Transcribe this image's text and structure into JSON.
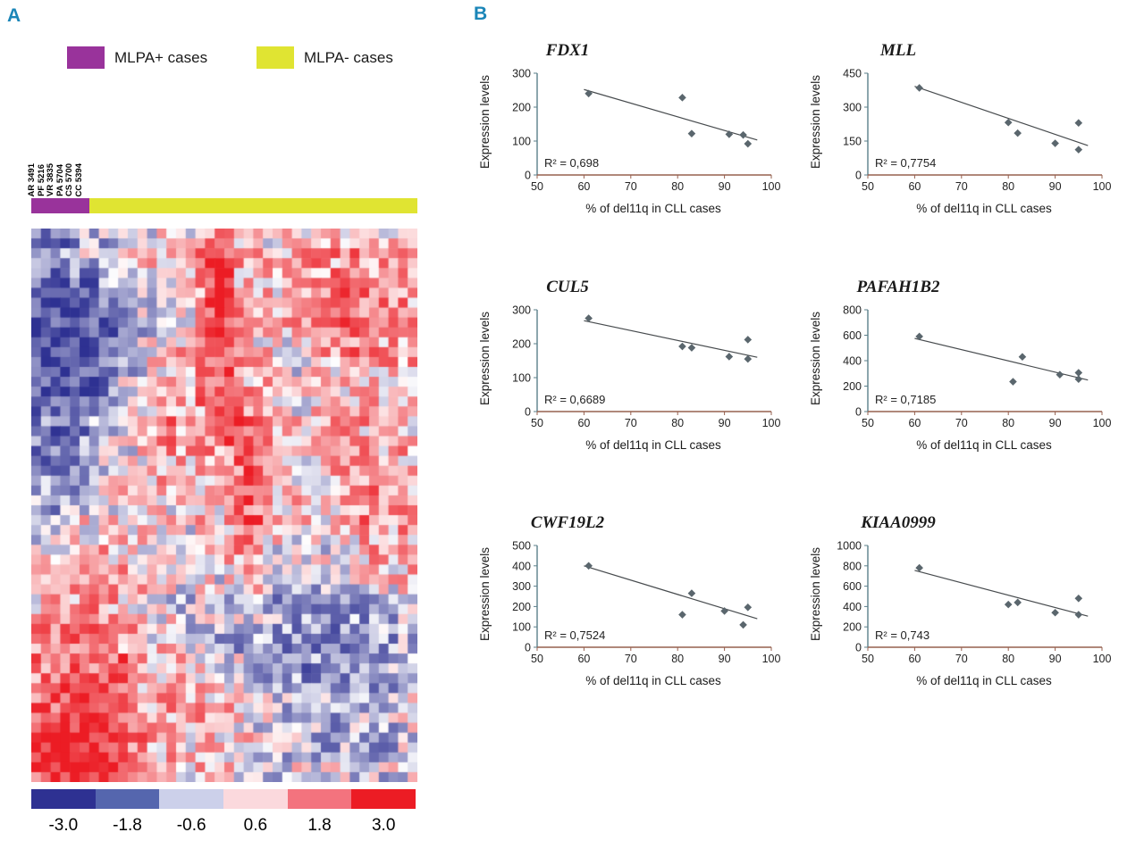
{
  "panel_a": {
    "label": "A",
    "legend": [
      {
        "label": "MLPA+ cases",
        "color": "#99339b"
      },
      {
        "label": "MLPA- cases",
        "color": "#e0e432"
      }
    ],
    "sample_labels": [
      "AR 3491",
      "PF 5216",
      "VR 3835",
      "PA 5704",
      "CS 5700",
      "CC 5394"
    ],
    "group_bar": {
      "mlpa_pos_color": "#99339b",
      "mlpa_neg_color": "#e0e432"
    },
    "colorbar": {
      "colors": [
        "#2e3192",
        "#5566ae",
        "#ccd0ea",
        "#fbd9dd",
        "#f3737e",
        "#ec1c24"
      ],
      "tick_labels": [
        "-3.0",
        "-1.8",
        "-0.6",
        "0.6",
        "1.8",
        "3.0"
      ]
    }
  },
  "panel_b": {
    "label": "B"
  },
  "chart_data": [
    {
      "type": "heatmap",
      "n_rows": 56,
      "n_cols": 40,
      "mlpa_pos_columns": 6,
      "value_scale_ticks": [
        -3.0,
        -1.8,
        -0.6,
        0.6,
        1.8,
        3.0
      ],
      "negative_color": "#2e3192",
      "midpoint_color": "#ffffff",
      "positive_color": "#ec1c24"
    },
    {
      "type": "scatter",
      "title": "FDX1",
      "xlabel": "% of del11q in CLL cases",
      "ylabel": "Expression levels",
      "xlim": [
        50,
        100
      ],
      "ylim": [
        0,
        300
      ],
      "xticks": [
        50,
        60,
        70,
        80,
        90,
        100
      ],
      "yticks": [
        0,
        100,
        200,
        300
      ],
      "r2": "R² = 0,698",
      "points": [
        [
          61,
          240
        ],
        [
          81,
          228
        ],
        [
          83,
          122
        ],
        [
          91,
          120
        ],
        [
          94,
          118
        ],
        [
          95,
          92
        ]
      ],
      "trend": [
        [
          60,
          252
        ],
        [
          97,
          103
        ]
      ]
    },
    {
      "type": "scatter",
      "title": "MLL",
      "xlabel": "% of del11q in CLL cases",
      "ylabel": "Expression levels",
      "xlim": [
        50,
        100
      ],
      "ylim": [
        0,
        450
      ],
      "xticks": [
        50,
        60,
        70,
        80,
        90,
        100
      ],
      "yticks": [
        0,
        150,
        300,
        450
      ],
      "r2": "R² = 0,7754",
      "points": [
        [
          61,
          385
        ],
        [
          80,
          232
        ],
        [
          82,
          185
        ],
        [
          90,
          140
        ],
        [
          95,
          230
        ],
        [
          95,
          112
        ]
      ],
      "trend": [
        [
          60,
          392
        ],
        [
          97,
          130
        ]
      ]
    },
    {
      "type": "scatter",
      "title": "CUL5",
      "xlabel": "% of del11q in CLL cases",
      "ylabel": "Expression levels",
      "xlim": [
        50,
        100
      ],
      "ylim": [
        0,
        300
      ],
      "xticks": [
        50,
        60,
        70,
        80,
        90,
        100
      ],
      "yticks": [
        0,
        100,
        200,
        300
      ],
      "r2": "R² = 0,6689",
      "points": [
        [
          61,
          275
        ],
        [
          81,
          192
        ],
        [
          83,
          188
        ],
        [
          91,
          162
        ],
        [
          95,
          212
        ],
        [
          95,
          155
        ]
      ],
      "trend": [
        [
          60,
          268
        ],
        [
          97,
          160
        ]
      ]
    },
    {
      "type": "scatter",
      "title": "PAFAH1B2",
      "xlabel": "% of del11q in CLL cases",
      "ylabel": "Expression levels",
      "xlim": [
        50,
        100
      ],
      "ylim": [
        0,
        800
      ],
      "xticks": [
        50,
        60,
        70,
        80,
        90,
        100
      ],
      "yticks": [
        0,
        200,
        400,
        600,
        800
      ],
      "r2": "R² = 0,7185",
      "points": [
        [
          61,
          590
        ],
        [
          81,
          235
        ],
        [
          83,
          430
        ],
        [
          91,
          290
        ],
        [
          95,
          305
        ],
        [
          95,
          255
        ]
      ],
      "trend": [
        [
          60,
          575
        ],
        [
          97,
          248
        ]
      ]
    },
    {
      "type": "scatter",
      "title": "CWF19L2",
      "xlabel": "% of del11q in CLL cases",
      "ylabel": "Expression levels",
      "xlim": [
        50,
        100
      ],
      "ylim": [
        0,
        500
      ],
      "xticks": [
        50,
        60,
        70,
        80,
        90,
        100
      ],
      "yticks": [
        0,
        100,
        200,
        300,
        400,
        500
      ],
      "r2": "R² = 0,7524",
      "points": [
        [
          61,
          400
        ],
        [
          81,
          160
        ],
        [
          83,
          265
        ],
        [
          90,
          178
        ],
        [
          95,
          196
        ],
        [
          94,
          110
        ]
      ],
      "trend": [
        [
          60,
          400
        ],
        [
          97,
          140
        ]
      ]
    },
    {
      "type": "scatter",
      "title": "KIAA0999",
      "xlabel": "% of del11q in CLL cases",
      "ylabel": "Expression levels",
      "xlim": [
        50,
        100
      ],
      "ylim": [
        0,
        1000
      ],
      "xticks": [
        50,
        60,
        70,
        80,
        90,
        100
      ],
      "yticks": [
        0,
        200,
        400,
        600,
        800,
        1000
      ],
      "r2": "R² = 0,743",
      "points": [
        [
          61,
          780
        ],
        [
          80,
          420
        ],
        [
          82,
          440
        ],
        [
          90,
          340
        ],
        [
          95,
          480
        ],
        [
          95,
          320
        ]
      ],
      "trend": [
        [
          60,
          755
        ],
        [
          97,
          305
        ]
      ]
    }
  ]
}
